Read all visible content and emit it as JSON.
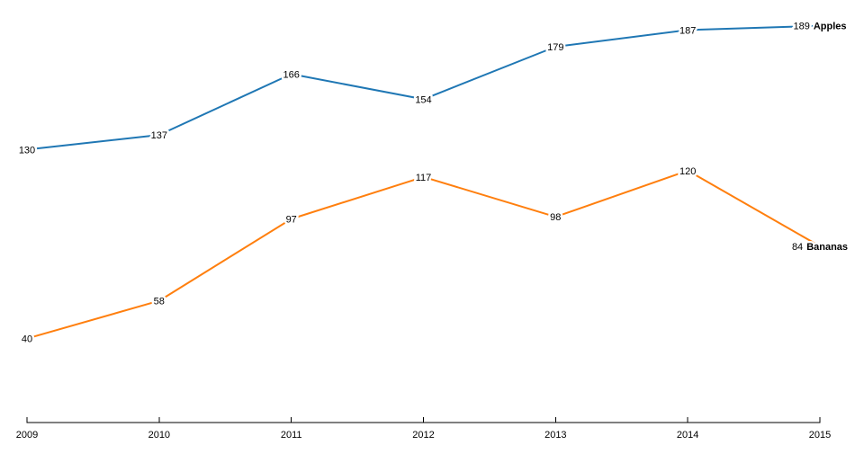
{
  "chart_data": {
    "type": "line",
    "title": "",
    "x": [
      2009,
      2010,
      2011,
      2012,
      2013,
      2014,
      2015
    ],
    "x_tick_labels": [
      "2009",
      "2010",
      "2011",
      "2012",
      "2013",
      "2014",
      "2015"
    ],
    "series": [
      {
        "name": "Apples",
        "color": "#1f77b4",
        "values": [
          130,
          137,
          166,
          154,
          179,
          187,
          189
        ]
      },
      {
        "name": "Bananas",
        "color": "#ff7f0e",
        "values": [
          40,
          58,
          97,
          117,
          98,
          120,
          84
        ]
      }
    ],
    "xlim": [
      2009,
      2015
    ],
    "ylim": [
      0,
      200
    ],
    "grid": false,
    "y_axis_shown": false,
    "legend_position": "line-end-labels",
    "colors": {
      "background": "#ffffff",
      "axis": "#000000",
      "label_text": "#000000",
      "halo": "#ffffff"
    }
  }
}
